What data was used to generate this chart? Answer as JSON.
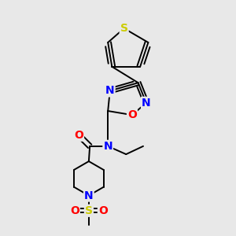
{
  "background_color": "#e8e8e8",
  "bond_color": "#000000",
  "atom_colors": {
    "N": "#0000FF",
    "O": "#FF0000",
    "S": "#CCCC00",
    "C": "#000000"
  },
  "figsize": [
    3.0,
    3.0
  ],
  "dpi": 100
}
